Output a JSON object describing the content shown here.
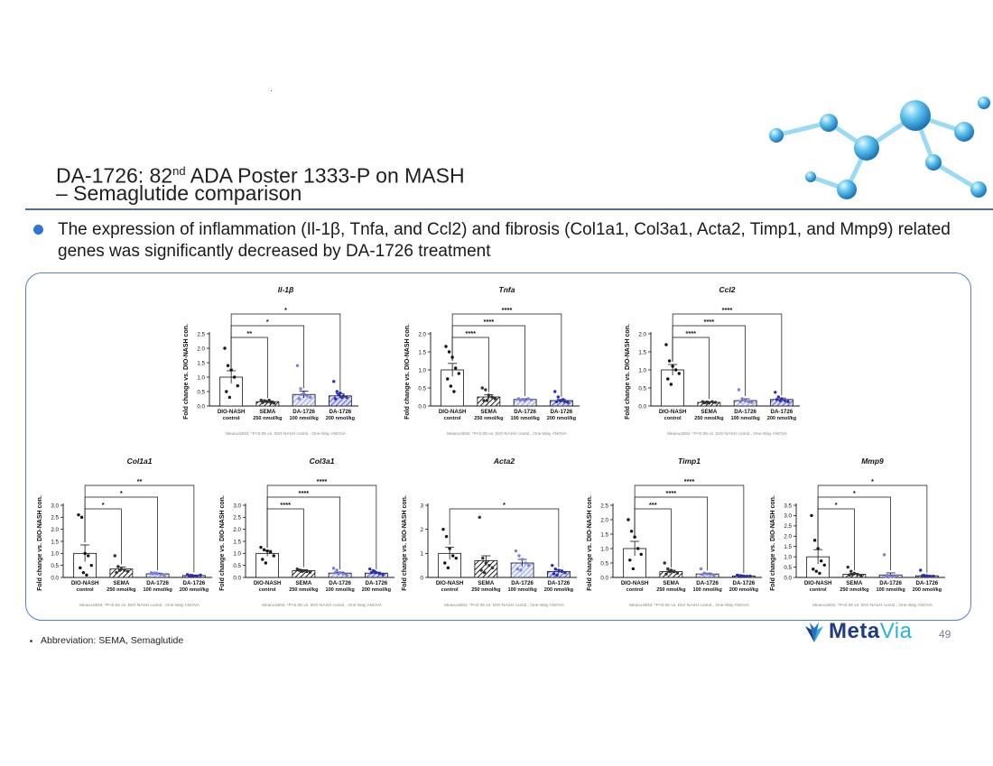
{
  "slide": {
    "title_main": "DA-1726: 82",
    "title_sup": "nd",
    "title_rest": " ADA Poster 1333-P on MASH",
    "subtitle": "– Semaglutide comparison",
    "bullet": "The expression of inflammation (Il-1β, Tnfa, and Ccl2) and fibrosis (Col1a1, Col3a1, Acta2, Timp1, and Mmp9) related genes was significantly decreased by DA-1726 treatment",
    "footnote": "Abbreviation: SEMA, Semaglutide",
    "logo_meta": "Meta",
    "logo_via": "Via",
    "page_number": "49"
  },
  "colors": {
    "accent_blue": "#2e75d6",
    "frame_blue": "#5b7fc7",
    "sema_dot": "#333333",
    "da100_dot": "#7b7fe0",
    "da200_dot": "#2b2fb0"
  },
  "chart_common": {
    "ylabel": "Fold change vs. DIO-NASH con.",
    "categories": [
      [
        "DIO-NASH",
        "control"
      ],
      [
        "SEMA",
        "250 nmol/kg"
      ],
      [
        "DA-1726",
        "100 nmol/kg"
      ],
      [
        "DA-1726",
        "200 nmol/kg"
      ]
    ],
    "note": "Mean±SEM, *P<0.05 vs. DIO-NASH contol., One-Way ANOVA"
  },
  "chart_data": [
    {
      "type": "bar",
      "title": "Il-1β",
      "ylim": [
        0,
        2.5
      ],
      "yticks": [
        "0.0",
        "0.5",
        "1.0",
        "1.5",
        "2.0",
        "2.5"
      ],
      "values": [
        1.0,
        0.15,
        0.4,
        0.35
      ],
      "errors": [
        0.22,
        0.03,
        0.12,
        0.08
      ],
      "points": [
        [
          2.0,
          1.4,
          1.25,
          1.0,
          0.7,
          0.5,
          0.3
        ],
        [
          0.2,
          0.18,
          0.15,
          0.12,
          0.1,
          0.12,
          0.16,
          0.2,
          0.14
        ],
        [
          1.4,
          0.6,
          0.45,
          0.35,
          0.3,
          0.25,
          0.4
        ],
        [
          0.85,
          0.5,
          0.45,
          0.35,
          0.3,
          0.25,
          0.4,
          0.3
        ]
      ],
      "comparisons": [
        {
          "from": 0,
          "to": 1,
          "label": "**"
        },
        {
          "from": 0,
          "to": 2,
          "label": "*"
        },
        {
          "from": 0,
          "to": 3,
          "label": "*"
        }
      ]
    },
    {
      "type": "bar",
      "title": "Tnfa",
      "ylim": [
        0,
        2.0
      ],
      "yticks": [
        "0.0",
        "0.5",
        "1.0",
        "1.5",
        "2.0"
      ],
      "values": [
        1.0,
        0.25,
        0.18,
        0.15
      ],
      "errors": [
        0.18,
        0.06,
        0.02,
        0.03
      ],
      "points": [
        [
          1.65,
          1.5,
          1.35,
          1.05,
          0.9,
          0.75,
          0.55,
          0.4
        ],
        [
          0.5,
          0.45,
          0.3,
          0.25,
          0.2,
          0.15,
          0.15
        ],
        [
          0.2,
          0.18,
          0.15,
          0.2,
          0.17,
          0.16,
          0.18
        ],
        [
          0.4,
          0.25,
          0.15,
          0.12,
          0.1,
          0.12,
          0.15,
          0.18
        ]
      ],
      "comparisons": [
        {
          "from": 0,
          "to": 1,
          "label": "****"
        },
        {
          "from": 0,
          "to": 2,
          "label": "****"
        },
        {
          "from": 0,
          "to": 3,
          "label": "****"
        }
      ]
    },
    {
      "type": "bar",
      "title": "Ccl2",
      "ylim": [
        0,
        2.0
      ],
      "yticks": [
        "0.0",
        "0.5",
        "1.0",
        "1.5",
        "2.0"
      ],
      "values": [
        1.0,
        0.1,
        0.15,
        0.18
      ],
      "errors": [
        0.15,
        0.02,
        0.05,
        0.04
      ],
      "points": [
        [
          1.7,
          1.25,
          1.1,
          1.0,
          0.9,
          0.75,
          0.6
        ],
        [
          0.12,
          0.1,
          0.08,
          0.12,
          0.1,
          0.09,
          0.11
        ],
        [
          0.45,
          0.2,
          0.15,
          0.12,
          0.1,
          0.12
        ],
        [
          0.38,
          0.25,
          0.2,
          0.15,
          0.12,
          0.18,
          0.15
        ]
      ],
      "comparisons": [
        {
          "from": 0,
          "to": 1,
          "label": "****"
        },
        {
          "from": 0,
          "to": 2,
          "label": "****"
        },
        {
          "from": 0,
          "to": 3,
          "label": "****"
        }
      ]
    },
    {
      "type": "bar",
      "title": "Col1a1",
      "ylim": [
        0,
        3.0
      ],
      "yticks": [
        "0.0",
        "0.5",
        "1.0",
        "1.5",
        "2.0",
        "2.5",
        "3.0"
      ],
      "values": [
        1.0,
        0.35,
        0.15,
        0.08
      ],
      "errors": [
        0.35,
        0.08,
        0.03,
        0.02
      ],
      "points": [
        [
          2.6,
          2.5,
          1.0,
          0.9,
          0.5,
          0.4,
          0.2,
          0.1
        ],
        [
          0.9,
          0.45,
          0.35,
          0.3,
          0.25,
          0.2,
          0.3
        ],
        [
          0.2,
          0.18,
          0.15,
          0.12,
          0.1,
          0.15,
          0.18
        ],
        [
          0.12,
          0.08,
          0.05,
          0.06,
          0.1,
          0.07,
          0.08
        ]
      ],
      "comparisons": [
        {
          "from": 0,
          "to": 1,
          "label": "*"
        },
        {
          "from": 0,
          "to": 2,
          "label": "*"
        },
        {
          "from": 0,
          "to": 3,
          "label": "**"
        }
      ]
    },
    {
      "type": "bar",
      "title": "Col3a1",
      "ylim": [
        0,
        3.0
      ],
      "yticks": [
        "0.0",
        "0.5",
        "1.0",
        "1.5",
        "2.0",
        "2.5",
        "3.0"
      ],
      "values": [
        1.0,
        0.28,
        0.18,
        0.18
      ],
      "errors": [
        0.12,
        0.04,
        0.04,
        0.04
      ],
      "points": [
        [
          1.25,
          1.15,
          1.1,
          1.05,
          0.9,
          0.75,
          0.6
        ],
        [
          0.35,
          0.3,
          0.28,
          0.25,
          0.22,
          0.3,
          0.25
        ],
        [
          0.38,
          0.3,
          0.2,
          0.15,
          0.1,
          0.2,
          0.15
        ],
        [
          0.35,
          0.28,
          0.2,
          0.15,
          0.12,
          0.2,
          0.25
        ]
      ],
      "comparisons": [
        {
          "from": 0,
          "to": 1,
          "label": "****"
        },
        {
          "from": 0,
          "to": 2,
          "label": "****"
        },
        {
          "from": 0,
          "to": 3,
          "label": "****"
        }
      ]
    },
    {
      "type": "bar",
      "title": "Acta2",
      "ylim": [
        0,
        3.0
      ],
      "yticks": [
        "0",
        "1",
        "2",
        "3"
      ],
      "values": [
        1.0,
        0.7,
        0.6,
        0.25
      ],
      "errors": [
        0.25,
        0.2,
        0.15,
        0.06
      ],
      "points": [
        [
          2.0,
          1.7,
          1.2,
          0.9,
          0.8,
          0.6,
          0.4
        ],
        [
          2.5,
          0.8,
          0.6,
          0.5,
          0.4,
          0.3,
          0.2
        ],
        [
          1.1,
          0.9,
          0.75,
          0.6,
          0.5,
          0.35,
          0.3
        ],
        [
          0.5,
          0.35,
          0.3,
          0.25,
          0.2,
          0.15,
          0.1
        ]
      ],
      "comparisons": [
        {
          "from": 0,
          "to": 3,
          "label": "*"
        }
      ]
    },
    {
      "type": "bar",
      "title": "Timp1",
      "ylim": [
        0,
        2.5
      ],
      "yticks": [
        "0.0",
        "0.5",
        "1.0",
        "1.5",
        "2.0",
        "2.5"
      ],
      "values": [
        1.0,
        0.2,
        0.12,
        0.05
      ],
      "errors": [
        0.25,
        0.05,
        0.03,
        0.01
      ],
      "points": [
        [
          2.0,
          1.6,
          1.4,
          1.0,
          0.8,
          0.6,
          0.3
        ],
        [
          0.5,
          0.3,
          0.25,
          0.2,
          0.15,
          0.12,
          0.2
        ],
        [
          0.3,
          0.15,
          0.12,
          0.1,
          0.08,
          0.1
        ],
        [
          0.08,
          0.06,
          0.05,
          0.04,
          0.05,
          0.06,
          0.05
        ]
      ],
      "comparisons": [
        {
          "from": 0,
          "to": 1,
          "label": "***"
        },
        {
          "from": 0,
          "to": 2,
          "label": "****"
        },
        {
          "from": 0,
          "to": 3,
          "label": "****"
        }
      ]
    },
    {
      "type": "bar",
      "title": "Mmp9",
      "ylim": [
        0,
        3.5
      ],
      "yticks": [
        "0.0",
        "0.5",
        "1.0",
        "1.5",
        "2.0",
        "2.5",
        "3.0",
        "3.5"
      ],
      "values": [
        1.0,
        0.15,
        0.12,
        0.08
      ],
      "errors": [
        0.35,
        0.05,
        0.1,
        0.02
      ],
      "points": [
        [
          3.0,
          1.8,
          1.4,
          0.8,
          0.6,
          0.4,
          0.3,
          0.2
        ],
        [
          0.5,
          0.3,
          0.2,
          0.15,
          0.1,
          0.12,
          0.15
        ],
        [
          1.1,
          0.1,
          0.05,
          0.05,
          0.08,
          0.05
        ],
        [
          0.35,
          0.1,
          0.08,
          0.05,
          0.06,
          0.08,
          0.07
        ]
      ],
      "comparisons": [
        {
          "from": 0,
          "to": 1,
          "label": "*"
        },
        {
          "from": 0,
          "to": 2,
          "label": "*"
        },
        {
          "from": 0,
          "to": 3,
          "label": "*"
        }
      ]
    }
  ]
}
